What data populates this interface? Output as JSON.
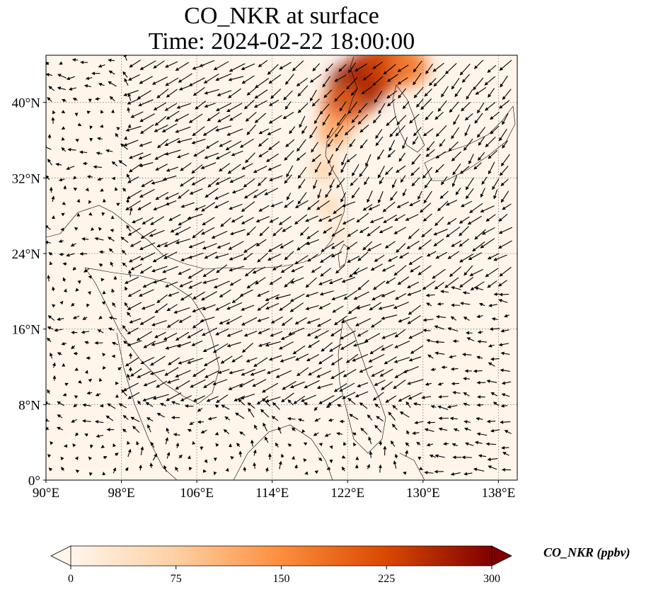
{
  "title": {
    "line1": "CO_NKR at surface",
    "line2": "Time: 2024-02-22 18:00:00"
  },
  "map": {
    "lon_range": [
      90,
      140
    ],
    "lat_range": [
      0,
      45
    ],
    "x_ticks": [
      {
        "value": 90,
        "label": "90°E"
      },
      {
        "value": 98,
        "label": "98°E"
      },
      {
        "value": 106,
        "label": "106°E"
      },
      {
        "value": 114,
        "label": "114°E"
      },
      {
        "value": 122,
        "label": "122°E"
      },
      {
        "value": 130,
        "label": "130°E"
      },
      {
        "value": 138,
        "label": "138°E"
      }
    ],
    "y_ticks": [
      {
        "value": 0,
        "label": "0°"
      },
      {
        "value": 8,
        "label": "8°N"
      },
      {
        "value": 16,
        "label": "16°N"
      },
      {
        "value": 24,
        "label": "24°N"
      },
      {
        "value": 32,
        "label": "32°N"
      },
      {
        "value": 40,
        "label": "40°N"
      }
    ],
    "gridlines": true,
    "plume": [
      {
        "lon": 122.8,
        "lat": 41.5,
        "value": 290
      },
      {
        "lon": 124.5,
        "lat": 43.0,
        "value": 260
      },
      {
        "lon": 126.5,
        "lat": 44.0,
        "value": 230
      },
      {
        "lon": 128.5,
        "lat": 43.8,
        "value": 170
      },
      {
        "lon": 121.5,
        "lat": 39.5,
        "value": 200
      },
      {
        "lon": 120.5,
        "lat": 37.0,
        "value": 120
      },
      {
        "lon": 119.5,
        "lat": 33.0,
        "value": 70
      },
      {
        "lon": 120.0,
        "lat": 29.0,
        "value": 55
      },
      {
        "lon": 121.0,
        "lat": 26.0,
        "value": 35
      }
    ]
  },
  "colorbar": {
    "label": "CO_NKR (ppbv)",
    "min": 0,
    "max": 300,
    "ticks": [
      {
        "value": 0,
        "label": "0"
      },
      {
        "value": 75,
        "label": "75"
      },
      {
        "value": 150,
        "label": "150"
      },
      {
        "value": 225,
        "label": "225"
      },
      {
        "value": 300,
        "label": "300"
      }
    ],
    "colors": [
      "#fff5eb",
      "#fdd0a2",
      "#fd8d3c",
      "#d94801",
      "#7f0000"
    ]
  }
}
